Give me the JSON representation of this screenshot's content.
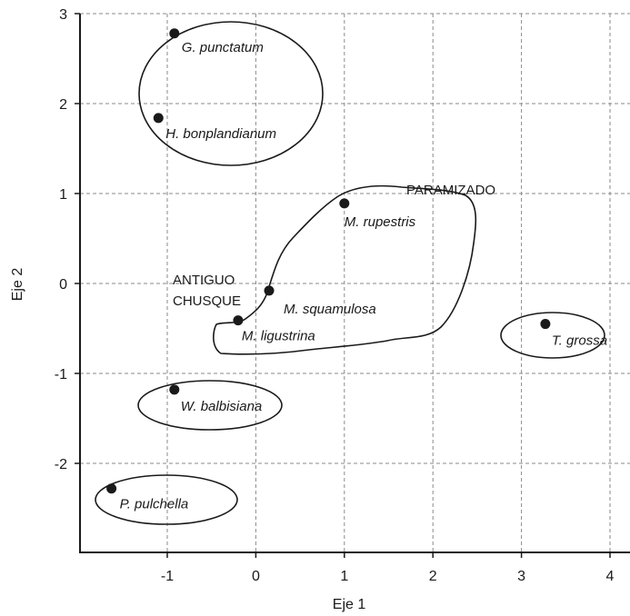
{
  "chart_data": {
    "type": "scatter",
    "xlabel": "Eje 1",
    "ylabel": "Eje 2",
    "xlim": [
      -2.0,
      4.2
    ],
    "ylim": [
      -3.0,
      3.0
    ],
    "xticks": [
      -1,
      0,
      1,
      2,
      3,
      4
    ],
    "yticks": [
      -2,
      -1,
      0,
      1,
      2,
      3
    ],
    "grid": true,
    "points": [
      {
        "label": "G. punctatum",
        "x": -0.92,
        "y": 2.78
      },
      {
        "label": "H. bonplandianum",
        "x": -1.1,
        "y": 1.84
      },
      {
        "label": "M. rupestris",
        "x": 1.0,
        "y": 0.89
      },
      {
        "label": "M. squamulosa",
        "x": 0.15,
        "y": -0.08
      },
      {
        "label": "M. ligustrina",
        "x": -0.2,
        "y": -0.41
      },
      {
        "label": "T. grossa",
        "x": 3.27,
        "y": -0.45
      },
      {
        "label": "W. balbisiana",
        "x": -0.92,
        "y": -1.18
      },
      {
        "label": "P. pulchella",
        "x": -1.63,
        "y": -2.28
      }
    ],
    "groups": [
      {
        "label": "PARAMIZADO"
      },
      {
        "label_lines": [
          "ANTIGUO",
          "CHUSQUE"
        ]
      }
    ]
  }
}
